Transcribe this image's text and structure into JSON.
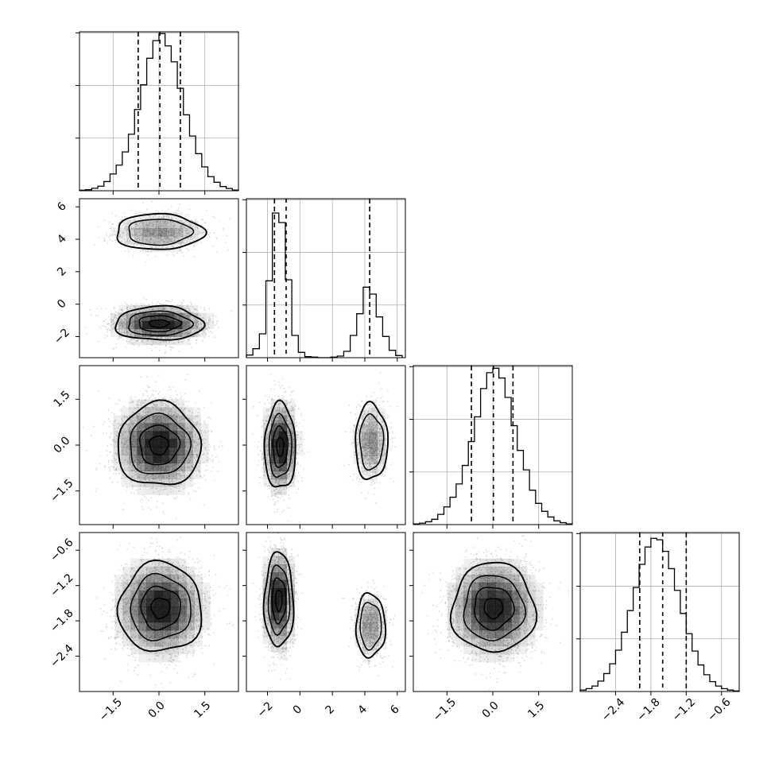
{
  "figure": {
    "type": "corner-plot",
    "background": "#ffffff",
    "frame_color": "#000000",
    "grid_color": "#b0b0b0",
    "hist_color": "#000000",
    "point_color": "#b5b5b5",
    "density_color": "#000000"
  },
  "chart_data": [
    {
      "type": "histogram",
      "panel": "hist-0",
      "variable_index": 0,
      "xlim": [
        -2.6,
        2.6
      ],
      "ticks": [
        -1.5,
        0.0,
        1.5
      ],
      "bin_centers": [
        -2.5,
        -2.3,
        -2.1,
        -1.9,
        -1.7,
        -1.5,
        -1.3,
        -1.1,
        -0.9,
        -0.7,
        -0.5,
        -0.3,
        -0.1,
        0.1,
        0.3,
        0.5,
        0.7,
        0.9,
        1.1,
        1.3,
        1.5,
        1.7,
        1.9,
        2.1,
        2.3,
        2.5
      ],
      "counts": [
        0.3,
        0.6,
        1.4,
        2.6,
        5.2,
        9.5,
        14.5,
        22,
        32,
        46,
        60,
        75,
        85,
        89,
        82,
        73,
        58,
        43,
        31,
        21,
        13.5,
        8,
        4.8,
        2.4,
        1.3,
        0.4
      ],
      "ylim": [
        0,
        90
      ],
      "quantiles": [
        -0.68,
        0.03,
        0.7
      ],
      "grid": true
    },
    {
      "type": "histogram",
      "panel": "hist-1",
      "variable_index": 1,
      "xlim": [
        -3.3,
        6.5
      ],
      "ticks": [
        -2,
        0,
        2,
        4,
        6
      ],
      "bin_centers": [
        -3.1,
        -2.7,
        -2.3,
        -1.9,
        -1.5,
        -1.1,
        -0.7,
        -0.3,
        0.1,
        0.5,
        0.9,
        1.3,
        1.7,
        2.1,
        2.5,
        2.9,
        3.3,
        3.7,
        4.1,
        4.5,
        4.9,
        5.3,
        5.7,
        6.1
      ],
      "counts": [
        0.5,
        1.7,
        4.5,
        14.5,
        27.3,
        25.5,
        14.7,
        4.2,
        1.0,
        0.2,
        0.1,
        0.0,
        0.0,
        0.1,
        0.3,
        1.2,
        4.2,
        8.3,
        13.3,
        12.0,
        7.7,
        4.0,
        1.4,
        0.4
      ],
      "ylim": [
        0,
        30
      ],
      "quantiles": [
        -1.57,
        -0.85,
        4.3
      ],
      "grid": true
    },
    {
      "type": "histogram",
      "panel": "hist-2",
      "variable_index": 2,
      "xlim": [
        -2.6,
        2.6
      ],
      "ticks": [
        -1.5,
        0.0,
        1.5
      ],
      "bin_centers": [
        -2.5,
        -2.3,
        -2.1,
        -1.9,
        -1.7,
        -1.5,
        -1.3,
        -1.1,
        -0.9,
        -0.7,
        -0.5,
        -0.3,
        -0.1,
        0.1,
        0.3,
        0.5,
        0.7,
        0.9,
        1.1,
        1.3,
        1.5,
        1.7,
        1.9,
        2.1,
        2.3,
        2.5
      ],
      "counts": [
        0.4,
        0.8,
        1.6,
        3.0,
        5.8,
        10.0,
        15.5,
        23,
        33.5,
        47,
        61,
        77,
        86,
        88.5,
        83,
        72,
        56,
        42,
        31,
        19.5,
        12,
        7.5,
        4.3,
        2.1,
        1.1,
        0.4
      ],
      "ylim": [
        0,
        90
      ],
      "quantiles": [
        -0.7,
        0.02,
        0.66
      ],
      "grid": true
    },
    {
      "type": "histogram",
      "panel": "hist-3",
      "variable_index": 3,
      "xlim": [
        -3.0,
        -0.3
      ],
      "ticks": [
        -2.4,
        -1.8,
        -1.2,
        -0.6
      ],
      "bin_centers": [
        -2.95,
        -2.85,
        -2.75,
        -2.65,
        -2.55,
        -2.45,
        -2.35,
        -2.25,
        -2.15,
        -2.05,
        -1.95,
        -1.85,
        -1.75,
        -1.65,
        -1.55,
        -1.45,
        -1.35,
        -1.25,
        -1.15,
        -1.05,
        -0.95,
        -0.85,
        -0.75,
        -0.65,
        -0.55,
        -0.45,
        -0.35
      ],
      "counts": [
        0.5,
        1.0,
        1.9,
        3.6,
        6.2,
        9.6,
        14.3,
        20.5,
        28.0,
        36.0,
        44.0,
        50.0,
        53.0,
        52.5,
        48.5,
        42.5,
        35.0,
        27.0,
        20.0,
        14.0,
        9.2,
        5.8,
        3.4,
        1.9,
        1.0,
        0.5,
        0.2
      ],
      "ylim": [
        0,
        55
      ],
      "quantiles": [
        -1.99,
        -1.6,
        -1.2
      ],
      "grid": true
    },
    {
      "type": "scatter",
      "panel": "pair-1-0",
      "x_index": 0,
      "y_index": 1,
      "xlim": [
        -2.6,
        2.6
      ],
      "ylim": [
        -3.3,
        6.5
      ],
      "yticks": [
        -2,
        0,
        2,
        4,
        6
      ],
      "modes": [
        {
          "cx": 0.0,
          "cy": -1.2,
          "sx": 0.72,
          "sy": 0.52,
          "weight": 0.7,
          "peak": 1.0
        },
        {
          "cx": 0.0,
          "cy": 4.45,
          "sx": 0.72,
          "sy": 0.55,
          "weight": 0.3,
          "peak": 0.4
        }
      ],
      "contour_levels": [
        0.15,
        0.45,
        0.75,
        0.93
      ]
    },
    {
      "type": "scatter",
      "panel": "pair-2-0",
      "x_index": 0,
      "y_index": 2,
      "xlim": [
        -2.6,
        2.6
      ],
      "ylim": [
        -2.6,
        2.6
      ],
      "yticks": [
        -1.5,
        0.0,
        1.5
      ],
      "modes": [
        {
          "cx": 0.0,
          "cy": 0.0,
          "sx": 0.68,
          "sy": 0.68,
          "weight": 1.0,
          "peak": 1.0
        }
      ],
      "contour_levels": [
        0.15,
        0.45,
        0.75,
        0.93
      ]
    },
    {
      "type": "scatter",
      "panel": "pair-2-1",
      "x_index": 1,
      "y_index": 2,
      "xlim": [
        -3.3,
        6.5
      ],
      "ylim": [
        -2.6,
        2.6
      ],
      "modes": [
        {
          "cx": -1.22,
          "cy": -0.05,
          "sx": 0.48,
          "sy": 0.7,
          "weight": 0.7,
          "peak": 1.0
        },
        {
          "cx": 4.4,
          "cy": 0.1,
          "sx": 0.5,
          "sy": 0.62,
          "weight": 0.3,
          "peak": 0.4
        }
      ],
      "contour_levels": [
        0.15,
        0.45,
        0.75,
        0.93
      ]
    },
    {
      "type": "scatter",
      "panel": "pair-3-0",
      "x_index": 0,
      "y_index": 3,
      "xlim": [
        -2.6,
        2.6
      ],
      "ylim": [
        -3.0,
        -0.3
      ],
      "yticks": [
        -2.4,
        -1.8,
        -1.2,
        -0.6
      ],
      "modes": [
        {
          "cx": 0.05,
          "cy": -1.58,
          "sx": 0.68,
          "sy": 0.38,
          "weight": 1.0,
          "peak": 1.0
        }
      ],
      "contour_levels": [
        0.15,
        0.45,
        0.75,
        0.93
      ]
    },
    {
      "type": "scatter",
      "panel": "pair-3-1",
      "x_index": 1,
      "y_index": 3,
      "xlim": [
        -3.3,
        6.5
      ],
      "ylim": [
        -3.0,
        -0.3
      ],
      "modes": [
        {
          "cx": -1.3,
          "cy": -1.45,
          "sx": 0.45,
          "sy": 0.4,
          "weight": 0.7,
          "peak": 1.0
        },
        {
          "cx": 4.35,
          "cy": -1.88,
          "sx": 0.45,
          "sy": 0.27,
          "weight": 0.3,
          "peak": 0.4
        }
      ],
      "contour_levels": [
        0.15,
        0.45,
        0.75,
        0.93
      ]
    },
    {
      "type": "scatter",
      "panel": "pair-3-2",
      "x_index": 2,
      "y_index": 3,
      "xlim": [
        -2.6,
        2.6
      ],
      "ylim": [
        -3.0,
        -0.3
      ],
      "modes": [
        {
          "cx": 0.02,
          "cy": -1.58,
          "sx": 0.68,
          "sy": 0.38,
          "weight": 1.0,
          "peak": 1.0
        }
      ],
      "contour_levels": [
        0.15,
        0.45,
        0.75,
        0.93
      ]
    }
  ]
}
